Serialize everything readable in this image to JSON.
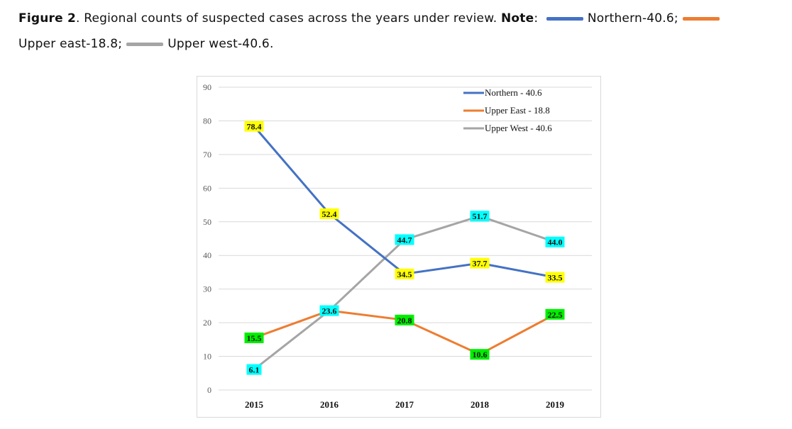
{
  "caption": {
    "figure_label": "Figure 2",
    "text": ". Regional counts of suspected cases across the years under review. ",
    "note_label": "Note",
    "colon": ":",
    "items": [
      {
        "text": "Northern-40.6;",
        "color": "#4472c4"
      },
      {
        "text": "Upper east-18.8;",
        "color": "#ed7d31"
      },
      {
        "text": "Upper west-40.6.",
        "color": "#a5a5a5"
      }
    ]
  },
  "chart_data": {
    "type": "line",
    "title": "",
    "xlabel": "",
    "ylabel": "",
    "categories": [
      "2015",
      "2016",
      "2017",
      "2018",
      "2019"
    ],
    "ylim": [
      0,
      90
    ],
    "yticks": [
      "0",
      "10",
      "20",
      "30",
      "40",
      "50",
      "60",
      "70",
      "80",
      "90"
    ],
    "grid": true,
    "legend_position": "top-right",
    "series": [
      {
        "name": "Northern - 40.6",
        "color": "#4472c4",
        "label_bg": "#ffff00",
        "values": [
          78.4,
          52.4,
          34.5,
          37.7,
          33.5
        ],
        "labels": [
          "78.4",
          "52.4",
          "34.5",
          "37.7",
          "33.5"
        ]
      },
      {
        "name": "Upper East - 18.8",
        "color": "#ed7d31",
        "label_bg": "#00ee00",
        "values": [
          15.5,
          23.6,
          20.8,
          10.6,
          22.5
        ],
        "labels": [
          "15.5",
          "",
          "20.8",
          "10.6",
          "22.5"
        ]
      },
      {
        "name": "Upper West - 40.6",
        "color": "#a5a5a5",
        "label_bg": "#00ffff",
        "values": [
          6.1,
          23.6,
          44.7,
          51.7,
          44.0
        ],
        "labels": [
          "6.1",
          "23.6",
          "44.7",
          "51.7",
          "44.0"
        ]
      }
    ]
  }
}
